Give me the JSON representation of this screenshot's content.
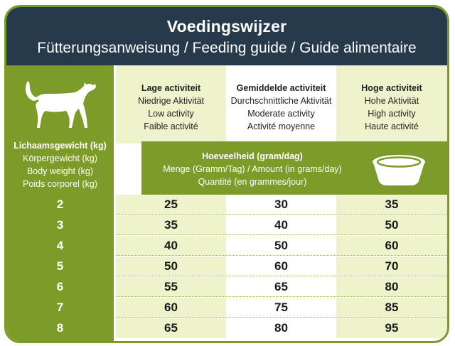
{
  "header": {
    "title": "Voedingswijzer",
    "subtitle": "Fütterungsanweisung / Feeding guide / Guide alimentaire"
  },
  "weight_label": {
    "nl": "Lichaamsgewicht (kg)",
    "de": "Körpergewicht (kg)",
    "en": "Body weight (kg)",
    "fr": "Poids corporel (kg)"
  },
  "activity": [
    {
      "nl": "Lage activiteit",
      "de": "Niedrige Aktivität",
      "en": "Low activity",
      "fr": "Faible activité"
    },
    {
      "nl": "Gemiddelde activiteit",
      "de": "Durchschnittliche Aktivität",
      "en": "Moderate activity",
      "fr": "Activité moyenne"
    },
    {
      "nl": "Hoge activiteit",
      "de": "Hohe Aktivität",
      "en": "High activity",
      "fr": "Haute activité"
    }
  ],
  "amount": {
    "nl": "Hoeveelheid (gram/dag)",
    "de_en": "Menge (Gramm/Tag) / Amount (in grams/day)",
    "fr": "Quantité (en grammes/jour)"
  },
  "rows": [
    {
      "w": "2",
      "v": [
        "25",
        "30",
        "35"
      ]
    },
    {
      "w": "3",
      "v": [
        "35",
        "40",
        "50"
      ]
    },
    {
      "w": "4",
      "v": [
        "40",
        "50",
        "60"
      ]
    },
    {
      "w": "5",
      "v": [
        "50",
        "60",
        "70"
      ]
    },
    {
      "w": "6",
      "v": [
        "55",
        "65",
        "80"
      ]
    },
    {
      "w": "7",
      "v": [
        "60",
        "75",
        "85"
      ]
    },
    {
      "w": "8",
      "v": [
        "65",
        "80",
        "95"
      ]
    }
  ],
  "icons": {
    "cat": "cat-icon",
    "bowl": "food-bowl-icon"
  },
  "colors": {
    "header": "#263a4c",
    "green": "#7d9b29",
    "light_green": "#eef3cc"
  }
}
